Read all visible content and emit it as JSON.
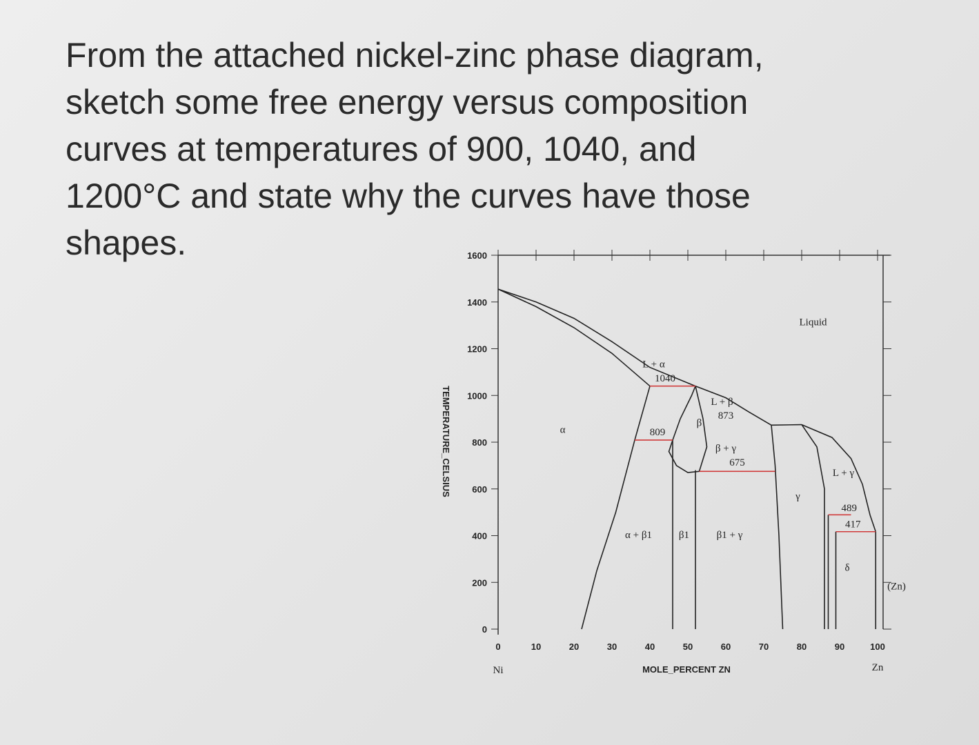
{
  "question": [
    "From the attached nickel-zinc phase diagram,",
    "sketch some free energy versus composition",
    "curves at temperatures of 900, 1040, and",
    "1200°C and state why the curves have those",
    "shapes."
  ],
  "chart_data": {
    "type": "phase",
    "xlabel": "MOLE_PERCENT ZN",
    "ylabel": "TEMPERATURE_CELSIUS",
    "x_left_label": "Ni",
    "x_right_label": "Zn",
    "xlim": [
      0,
      100
    ],
    "xticks": [
      0,
      10,
      20,
      30,
      40,
      50,
      60,
      70,
      80,
      90,
      100
    ],
    "ylim": [
      0,
      1600
    ],
    "yticks": [
      0,
      200,
      400,
      600,
      800,
      1000,
      1200,
      1400,
      1600
    ],
    "annotations": [
      "Liquid",
      "α",
      "L + α",
      "1040",
      "809",
      "β",
      "L + β",
      "873",
      "β + γ",
      "675",
      "γ",
      "L + γ",
      "489",
      "417",
      "δ",
      "(Zn)",
      "α + β1",
      "β1",
      "β1 + γ"
    ],
    "boundaries": [
      {
        "color": "#222",
        "x": [
          0,
          10,
          20,
          30,
          40,
          52,
          60,
          66,
          72
        ],
        "values": [
          1455,
          1400,
          1330,
          1230,
          1120,
          1040,
          990,
          930,
          873
        ]
      },
      {
        "color": "#222",
        "x": [
          0,
          10,
          20,
          30,
          40
        ],
        "values": [
          1455,
          1380,
          1290,
          1180,
          1040
        ]
      },
      {
        "color": "#222",
        "x": [
          40,
          36,
          31,
          26,
          22
        ],
        "values": [
          1040,
          809,
          500,
          250,
          0
        ]
      },
      {
        "color": "#222",
        "x": [
          46,
          45,
          47,
          50,
          53
        ],
        "values": [
          809,
          760,
          700,
          670,
          675
        ]
      },
      {
        "color": "#222",
        "x": [
          46,
          48,
          51,
          52
        ],
        "values": [
          809,
          900,
          1000,
          1040
        ]
      },
      {
        "color": "#222",
        "x": [
          52,
          54,
          55,
          53
        ],
        "values": [
          1040,
          900,
          780,
          675
        ]
      },
      {
        "color": "#222",
        "x": [
          46,
          46
        ],
        "values": [
          809,
          0
        ]
      },
      {
        "color": "#222",
        "x": [
          52,
          52
        ],
        "values": [
          680,
          0
        ]
      },
      {
        "color": "#222",
        "x": [
          72,
          73,
          74,
          75
        ],
        "values": [
          873,
          700,
          400,
          0
        ]
      },
      {
        "color": "#222",
        "x": [
          72,
          80
        ],
        "values": [
          873,
          875
        ]
      },
      {
        "color": "#222",
        "x": [
          80,
          88,
          93,
          96,
          98,
          99.5
        ],
        "values": [
          875,
          820,
          730,
          620,
          489,
          417
        ]
      },
      {
        "color": "#222",
        "x": [
          80,
          84,
          86,
          86
        ],
        "values": [
          875,
          780,
          600,
          0
        ]
      },
      {
        "color": "#222",
        "x": [
          87,
          87
        ],
        "values": [
          489,
          0
        ]
      },
      {
        "color": "#222",
        "x": [
          89,
          89
        ],
        "values": [
          417,
          0
        ]
      },
      {
        "color": "#222",
        "x": [
          99.5,
          99.5
        ],
        "values": [
          417,
          0
        ]
      },
      {
        "color": "#d03a3a",
        "x": [
          40,
          52
        ],
        "values": [
          1040,
          1040
        ]
      },
      {
        "color": "#d03a3a",
        "x": [
          36,
          46
        ],
        "values": [
          809,
          809
        ]
      },
      {
        "color": "#d03a3a",
        "x": [
          53,
          73
        ],
        "values": [
          675,
          675
        ]
      },
      {
        "color": "#d03a3a",
        "x": [
          87,
          93
        ],
        "values": [
          489,
          489
        ]
      },
      {
        "color": "#d03a3a",
        "x": [
          89,
          99.5
        ],
        "values": [
          417,
          417
        ]
      }
    ]
  }
}
